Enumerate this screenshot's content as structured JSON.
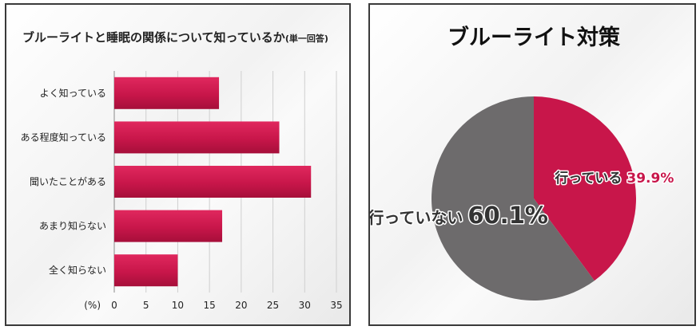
{
  "chart_data": [
    {
      "type": "bar",
      "orientation": "horizontal",
      "title": "ブルーライトと睡眠の関係について知っているか",
      "subtitle": "(単一回答)",
      "categories": [
        "よく知っている",
        "ある程度知っている",
        "聞いたことがある",
        "あまり知らない",
        "全く知らない"
      ],
      "values": [
        16.5,
        26,
        31,
        17,
        10
      ],
      "xlabel": "(%)",
      "xlim": [
        0,
        35
      ],
      "xticks": [
        "0",
        "5",
        "10",
        "15",
        "20",
        "25",
        "30",
        "35"
      ],
      "grid": true,
      "bar_color": "#c8164a"
    },
    {
      "type": "pie",
      "title": "ブルーライト対策",
      "slices": [
        {
          "label": "行っている",
          "value": 39.9,
          "value_label": "39.9%",
          "color": "#c8164a"
        },
        {
          "label": "行っていない",
          "value": 60.1,
          "value_label": "60.1%",
          "color": "#6d6b6c"
        }
      ]
    }
  ]
}
